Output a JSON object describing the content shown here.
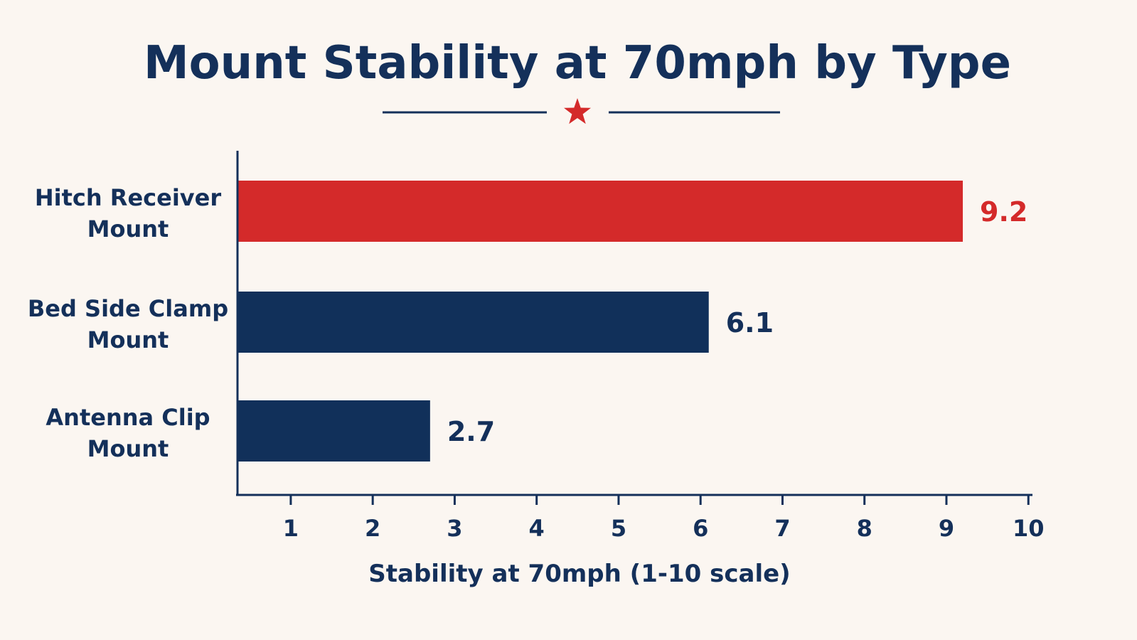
{
  "chart_data": {
    "type": "bar",
    "orientation": "horizontal",
    "title": "Mount Stability at 70mph by Type",
    "categories": [
      "Hitch Receiver Mount",
      "Bed Side Clamp Mount",
      "Antenna Clip Mount"
    ],
    "category_lines": [
      [
        "Hitch Receiver",
        "Mount"
      ],
      [
        "Bed Side Clamp",
        "Mount"
      ],
      [
        "Antenna Clip",
        "Mount"
      ]
    ],
    "values": [
      9.2,
      6.1,
      2.7
    ],
    "value_labels": [
      "9.2",
      "6.1",
      "2.7"
    ],
    "xlabel": "Stability at 70mph (1-10 scale)",
    "ylabel": "",
    "xlim": [
      0.35,
      10.05
    ],
    "xticks": [
      1,
      2,
      3,
      4,
      5,
      6,
      7,
      8,
      9,
      10
    ],
    "grid": false,
    "highlight_index": 0,
    "colors": {
      "highlight": "#d42a2a",
      "bar": "#11305a",
      "text": "#14305a",
      "axis": "#14305a",
      "background": "#fbf6f1"
    },
    "decoration": "star-divider-under-title"
  }
}
